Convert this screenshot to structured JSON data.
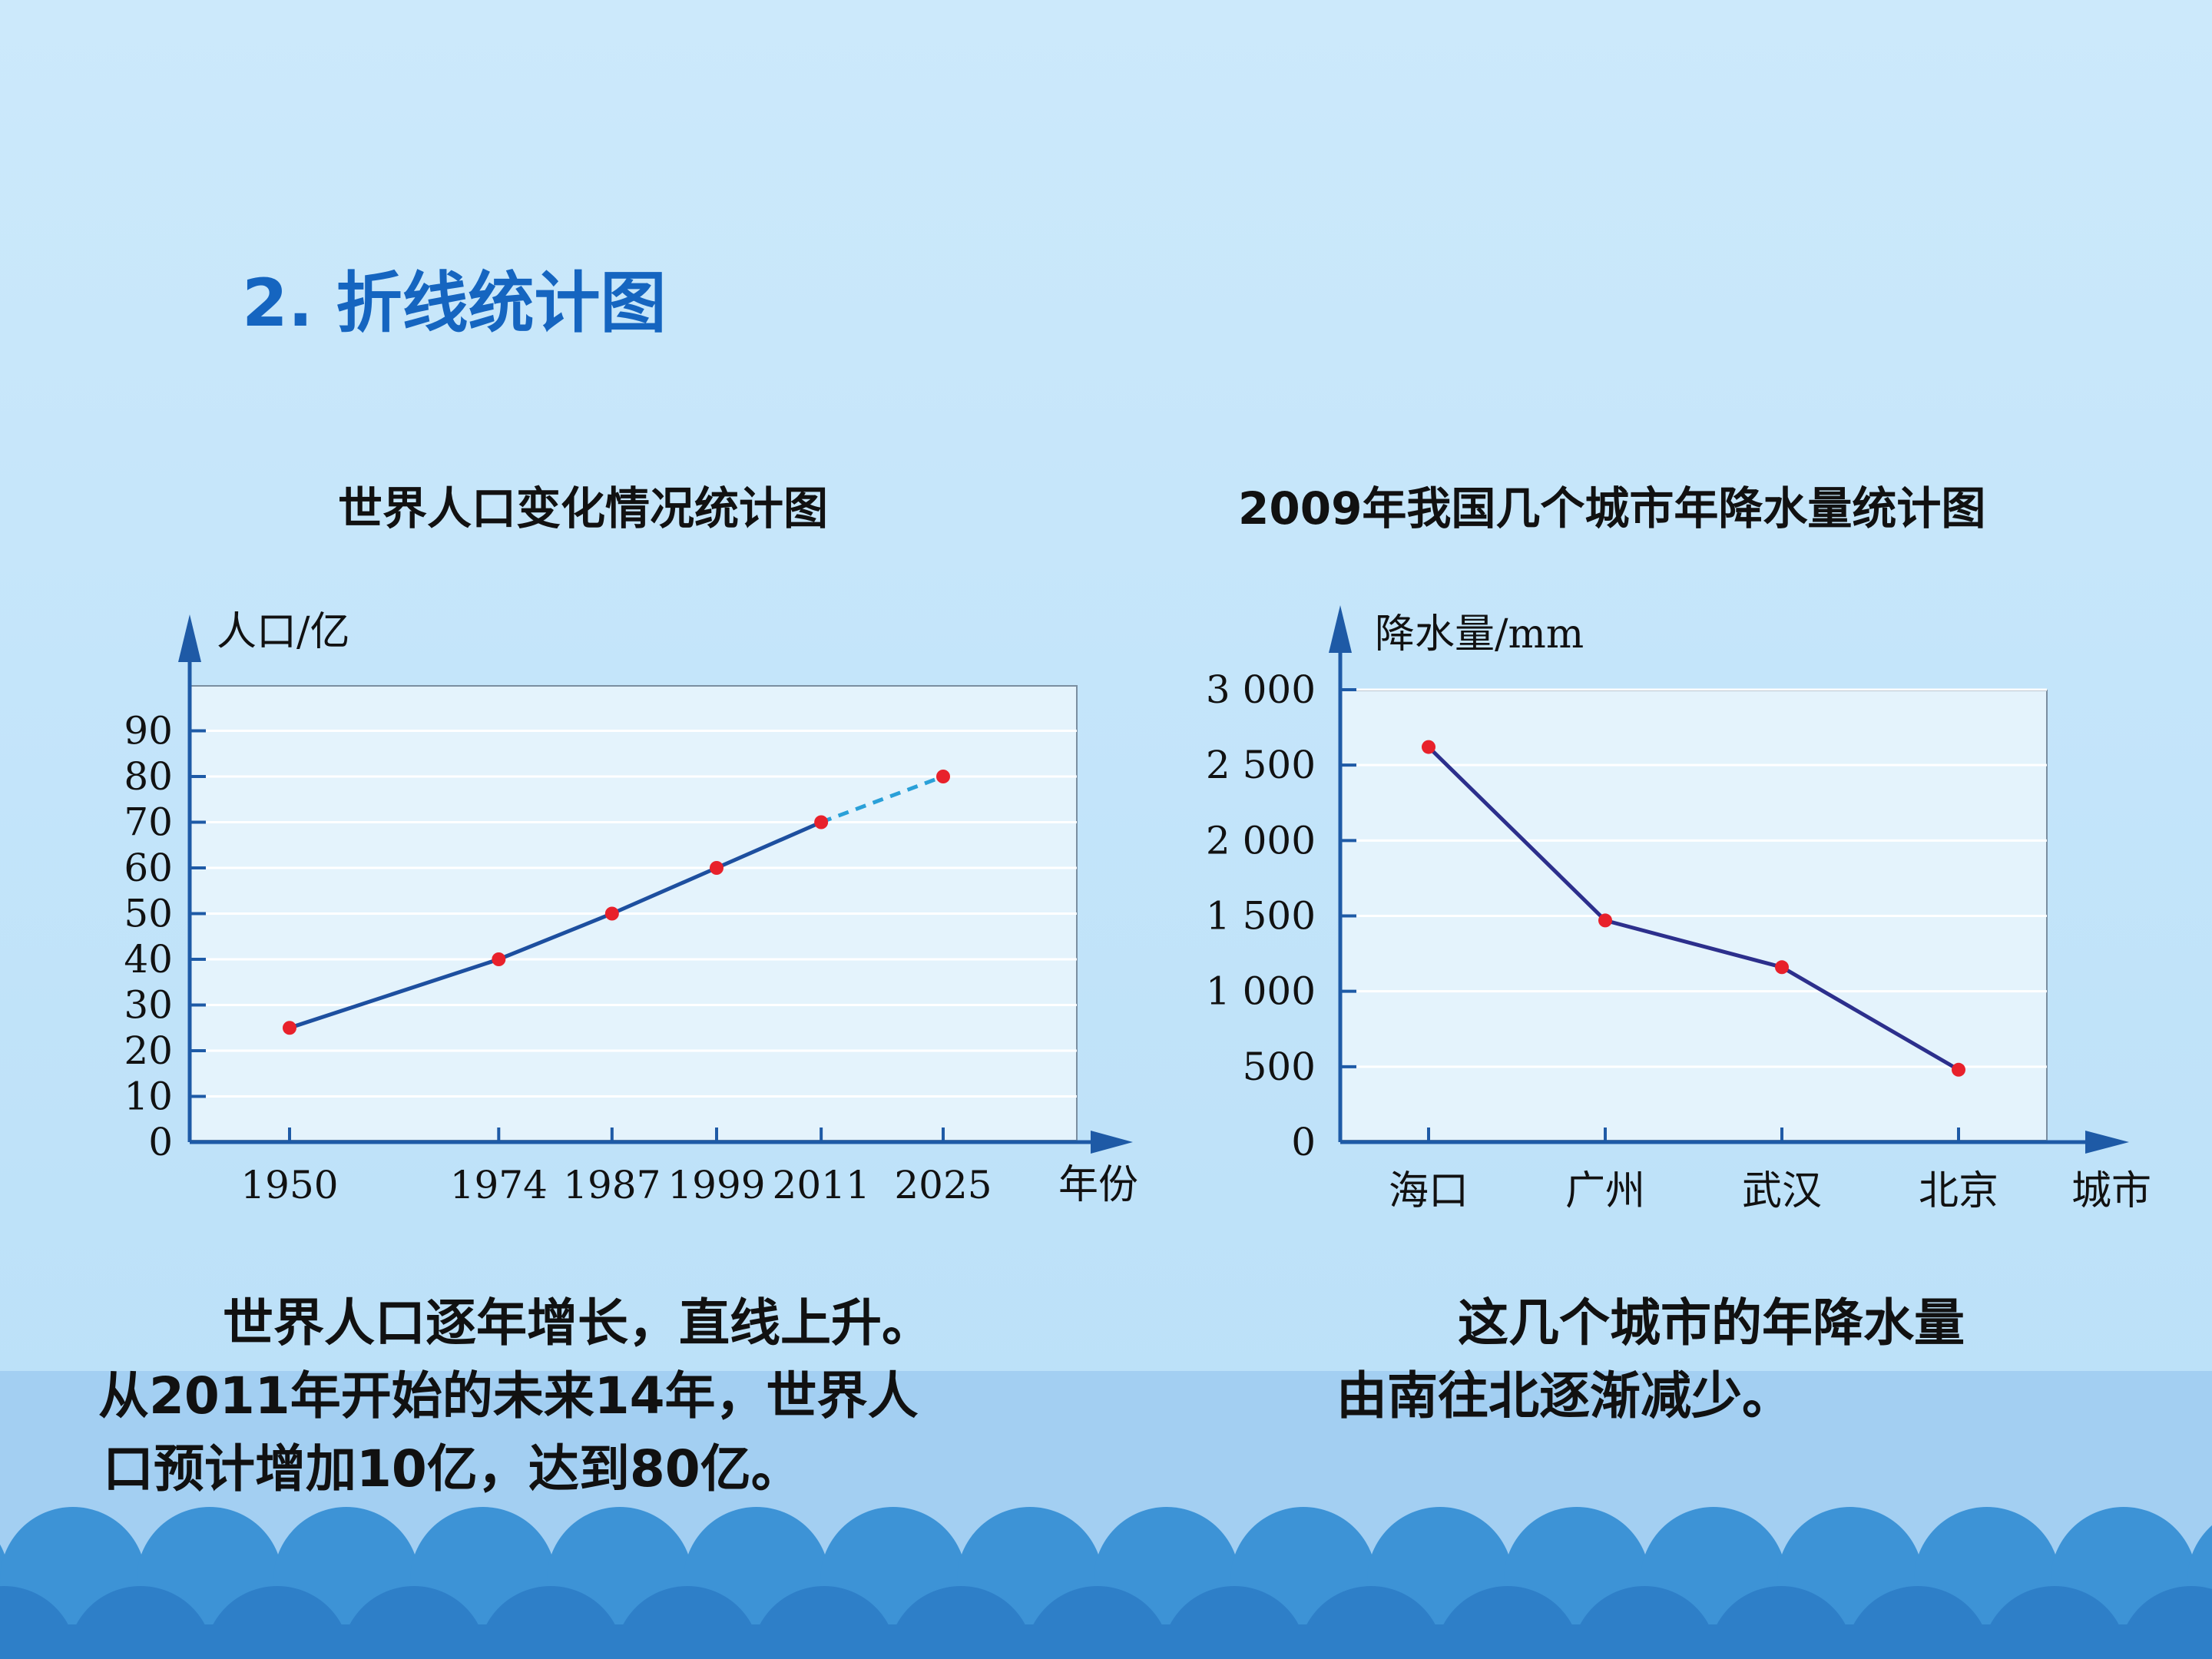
{
  "slide": {
    "title": "2. 折线统计图",
    "caption_left": [
      "世界人口逐年增长，直线上升。",
      "从2011年开始的未来14年，世界人",
      "口预计增加10亿，达到80亿。"
    ],
    "caption_right": [
      "这几个城市的年降水量",
      "由南往北逐渐减少。"
    ]
  },
  "colors": {
    "background_top": "#cde9fb",
    "background_band": "#9fccf0",
    "wave_dark": "#2e7fc8",
    "wave_mid": "#3d93d6",
    "title_blue": "#1565c0",
    "plot_bg": "#e4f3fc",
    "axis_blue": "#1e5aa6",
    "line_left": "#1d4f9f",
    "line_right": "#2c2f8c",
    "dash_forecast": "#2aa0d8",
    "point_red": "#e8212b"
  },
  "chart_data": [
    {
      "type": "line",
      "title": "世界人口变化情况统计图",
      "xlabel": "年份",
      "ylabel": "人口/亿",
      "x": [
        1950,
        1974,
        1987,
        1999,
        2011,
        2025
      ],
      "x_tick_labels": [
        "1950",
        "1974",
        "1987",
        "1999",
        "2011",
        "2025"
      ],
      "series": [
        {
          "values": [
            25,
            40,
            50,
            60,
            70,
            80
          ],
          "forecast_from_index": 4
        }
      ],
      "ylim": [
        0,
        100
      ],
      "y_ticks": [
        0,
        10,
        20,
        30,
        40,
        50,
        60,
        70,
        80,
        90
      ],
      "y_tick_labels": [
        "0",
        "10",
        "20",
        "30",
        "40",
        "50",
        "60",
        "70",
        "80",
        "90"
      ],
      "grid": true
    },
    {
      "type": "line",
      "title": "2009年我国几个城市年降水量统计图",
      "xlabel": "城市",
      "ylabel": "降水量/mm",
      "categories": [
        "海口",
        "广州",
        "武汉",
        "北京"
      ],
      "series": [
        {
          "values": [
            2620,
            1470,
            1160,
            480
          ]
        }
      ],
      "ylim": [
        0,
        3000
      ],
      "y_ticks": [
        0,
        500,
        1000,
        1500,
        2000,
        2500,
        3000
      ],
      "y_tick_labels": [
        "0",
        "500",
        "1 000",
        "1 500",
        "2 000",
        "2 500",
        "3 000"
      ],
      "grid": true
    }
  ]
}
